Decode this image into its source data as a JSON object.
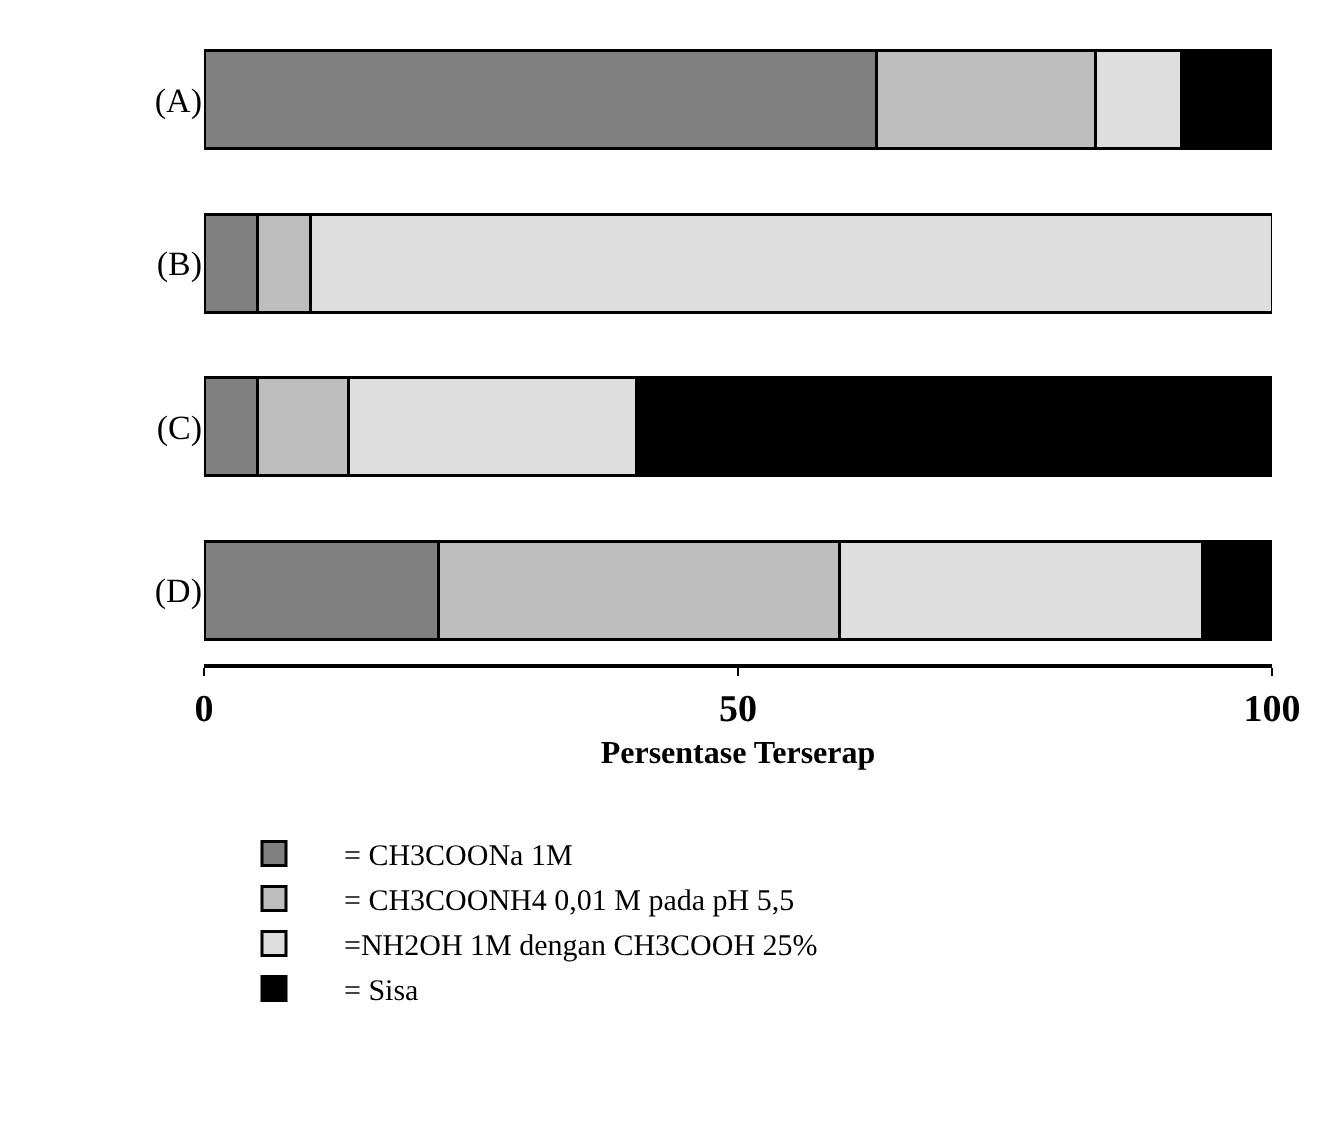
{
  "chart_data": {
    "type": "bar",
    "orientation": "horizontal",
    "stacked": true,
    "xlabel": "Persentase Terserap",
    "categories": [
      "(A)",
      "(B)",
      "(C)",
      "(D)"
    ],
    "series": [
      {
        "name": "= CH3COONa 1M",
        "color": "#808080",
        "values": [
          63,
          5,
          5,
          22
        ]
      },
      {
        "name": "= CH3COONH4 0,01 M pada pH 5,5",
        "color": "#bebebe",
        "values": [
          20.5,
          5,
          8.5,
          37.5
        ]
      },
      {
        "name": "=NH2OH 1M dengan CH3COOH 25%",
        "color": "#dedede",
        "values": [
          8,
          90,
          27,
          34
        ]
      },
      {
        "name": "= Sisa",
        "color": "#000000",
        "values": [
          8.5,
          0,
          59.5,
          6.5
        ]
      }
    ],
    "xlim": [
      0,
      100
    ],
    "xticks": [
      0,
      50,
      100
    ],
    "legend": "bottom left"
  }
}
